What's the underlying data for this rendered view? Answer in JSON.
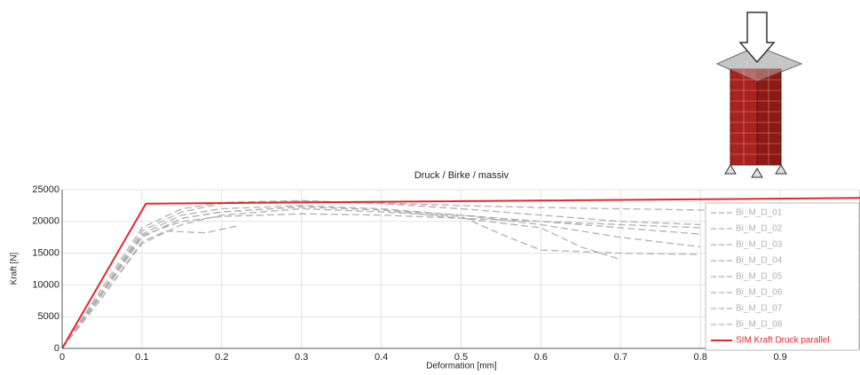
{
  "chart_data": {
    "type": "line",
    "title": "Druck / Birke / massiv",
    "x_label": "Deformation [mm]",
    "y_label": "Kraft [N]",
    "xlim": [
      0,
      1
    ],
    "ylim": [
      0,
      25000
    ],
    "xticks": [
      0,
      0.1,
      0.2,
      0.3,
      0.4,
      0.5,
      0.6,
      0.7,
      0.8,
      0.9
    ],
    "yticks": [
      0,
      5000,
      10000,
      15000,
      20000,
      25000
    ],
    "grid": true,
    "legend": "right",
    "series": [
      {
        "name": "Bi_M_D_01",
        "color": "#b0b0b0",
        "linestyle": "dashed",
        "x": [
          0,
          0.05,
          0.1,
          0.15,
          0.2,
          0.3,
          0.4,
          0.5,
          0.6,
          0.7,
          0.8,
          0.9,
          1.0
        ],
        "values": [
          0,
          9000,
          18500,
          21500,
          22800,
          23200,
          22900,
          22500,
          22200,
          22000,
          21800,
          21600,
          21500
        ]
      },
      {
        "name": "Bi_M_D_02",
        "color": "#b0b0b0",
        "linestyle": "dashed",
        "x": [
          0,
          0.05,
          0.1,
          0.15,
          0.2,
          0.3,
          0.4,
          0.5,
          0.6,
          0.7,
          0.8
        ],
        "values": [
          0,
          8500,
          17500,
          20500,
          21500,
          22300,
          21800,
          21000,
          20000,
          19000,
          18000
        ]
      },
      {
        "name": "Bi_M_D_03",
        "color": "#b0b0b0",
        "linestyle": "dashed",
        "x": [
          0,
          0.05,
          0.1,
          0.15,
          0.2,
          0.3,
          0.4,
          0.5,
          0.55,
          0.6,
          0.7,
          0.8
        ],
        "values": [
          0,
          8000,
          16500,
          19500,
          21000,
          22000,
          21500,
          20800,
          18000,
          15500,
          15000,
          14800
        ]
      },
      {
        "name": "Bi_M_D_04",
        "color": "#b0b0b0",
        "linestyle": "dashed",
        "x": [
          0,
          0.05,
          0.1,
          0.13,
          0.18,
          0.22
        ],
        "values": [
          0,
          8000,
          16800,
          18500,
          18200,
          19300
        ]
      },
      {
        "name": "Bi_M_D_05",
        "color": "#b0b0b0",
        "linestyle": "dashed",
        "x": [
          0,
          0.05,
          0.1,
          0.15,
          0.2,
          0.3,
          0.4,
          0.5,
          0.6,
          0.65,
          0.7
        ],
        "values": [
          0,
          8500,
          17500,
          20500,
          21500,
          22300,
          21800,
          20500,
          19000,
          16000,
          14000
        ]
      },
      {
        "name": "Bi_M_D_06",
        "color": "#b0b0b0",
        "linestyle": "dashed",
        "x": [
          0,
          0.05,
          0.1,
          0.15,
          0.2,
          0.3,
          0.4,
          0.5,
          0.6,
          0.7,
          0.8
        ],
        "values": [
          0,
          9500,
          19000,
          22000,
          23000,
          23300,
          22800,
          22000,
          21000,
          20000,
          19500
        ]
      },
      {
        "name": "Bi_M_D_07",
        "color": "#b0b0b0",
        "linestyle": "dashed",
        "x": [
          0,
          0.05,
          0.1,
          0.15,
          0.2,
          0.3,
          0.4,
          0.5,
          0.6,
          0.7,
          0.8
        ],
        "values": [
          0,
          9000,
          18000,
          21000,
          22000,
          22500,
          22000,
          21000,
          19500,
          17500,
          16000
        ]
      },
      {
        "name": "Bi_M_D_08",
        "color": "#b0b0b0",
        "linestyle": "dashed",
        "x": [
          0,
          0.05,
          0.1,
          0.15,
          0.2,
          0.3,
          0.4,
          0.5,
          0.6,
          0.7,
          0.8
        ],
        "values": [
          0,
          8800,
          17800,
          20000,
          20800,
          21200,
          21000,
          20500,
          20000,
          19500,
          19000
        ]
      },
      {
        "name": "SIM Kraft Druck parallel",
        "color": "#e8242c",
        "linestyle": "solid",
        "x": [
          0,
          0.105,
          1.0
        ],
        "values": [
          0,
          22800,
          23700
        ]
      }
    ]
  }
}
